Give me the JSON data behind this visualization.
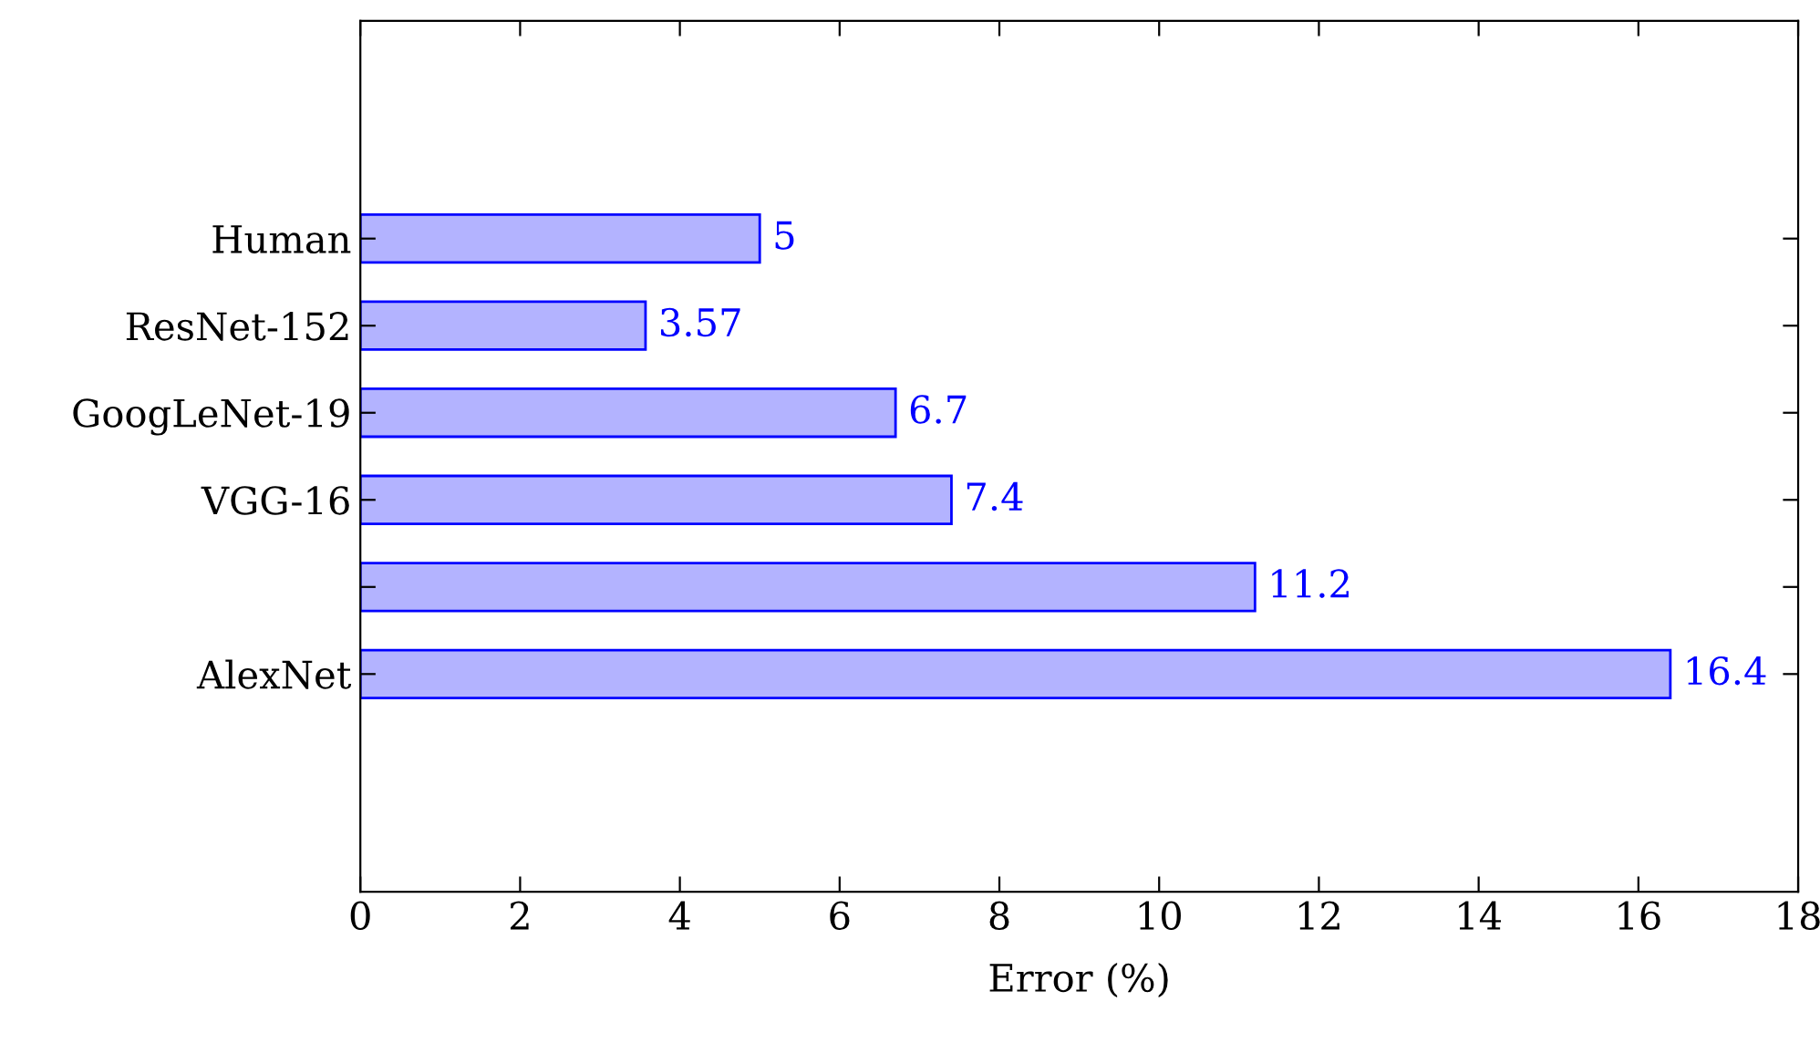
{
  "chart_data": {
    "type": "bar",
    "orientation": "horizontal",
    "categories": [
      "Human",
      "ResNet-152",
      "GoogLeNet-19",
      "VGG-16",
      null,
      "AlexNet"
    ],
    "series": [
      {
        "color": "#b3b3ff",
        "values": [
          5,
          3.57,
          6.7,
          7.4,
          11.2,
          16.4
        ]
      }
    ],
    "xlabel": "Error (%)",
    "xlim": [
      0,
      18
    ],
    "xticks": [
      0,
      2,
      4,
      6,
      8,
      10,
      12,
      14,
      16,
      18
    ],
    "data_labels": true,
    "grid": false
  }
}
